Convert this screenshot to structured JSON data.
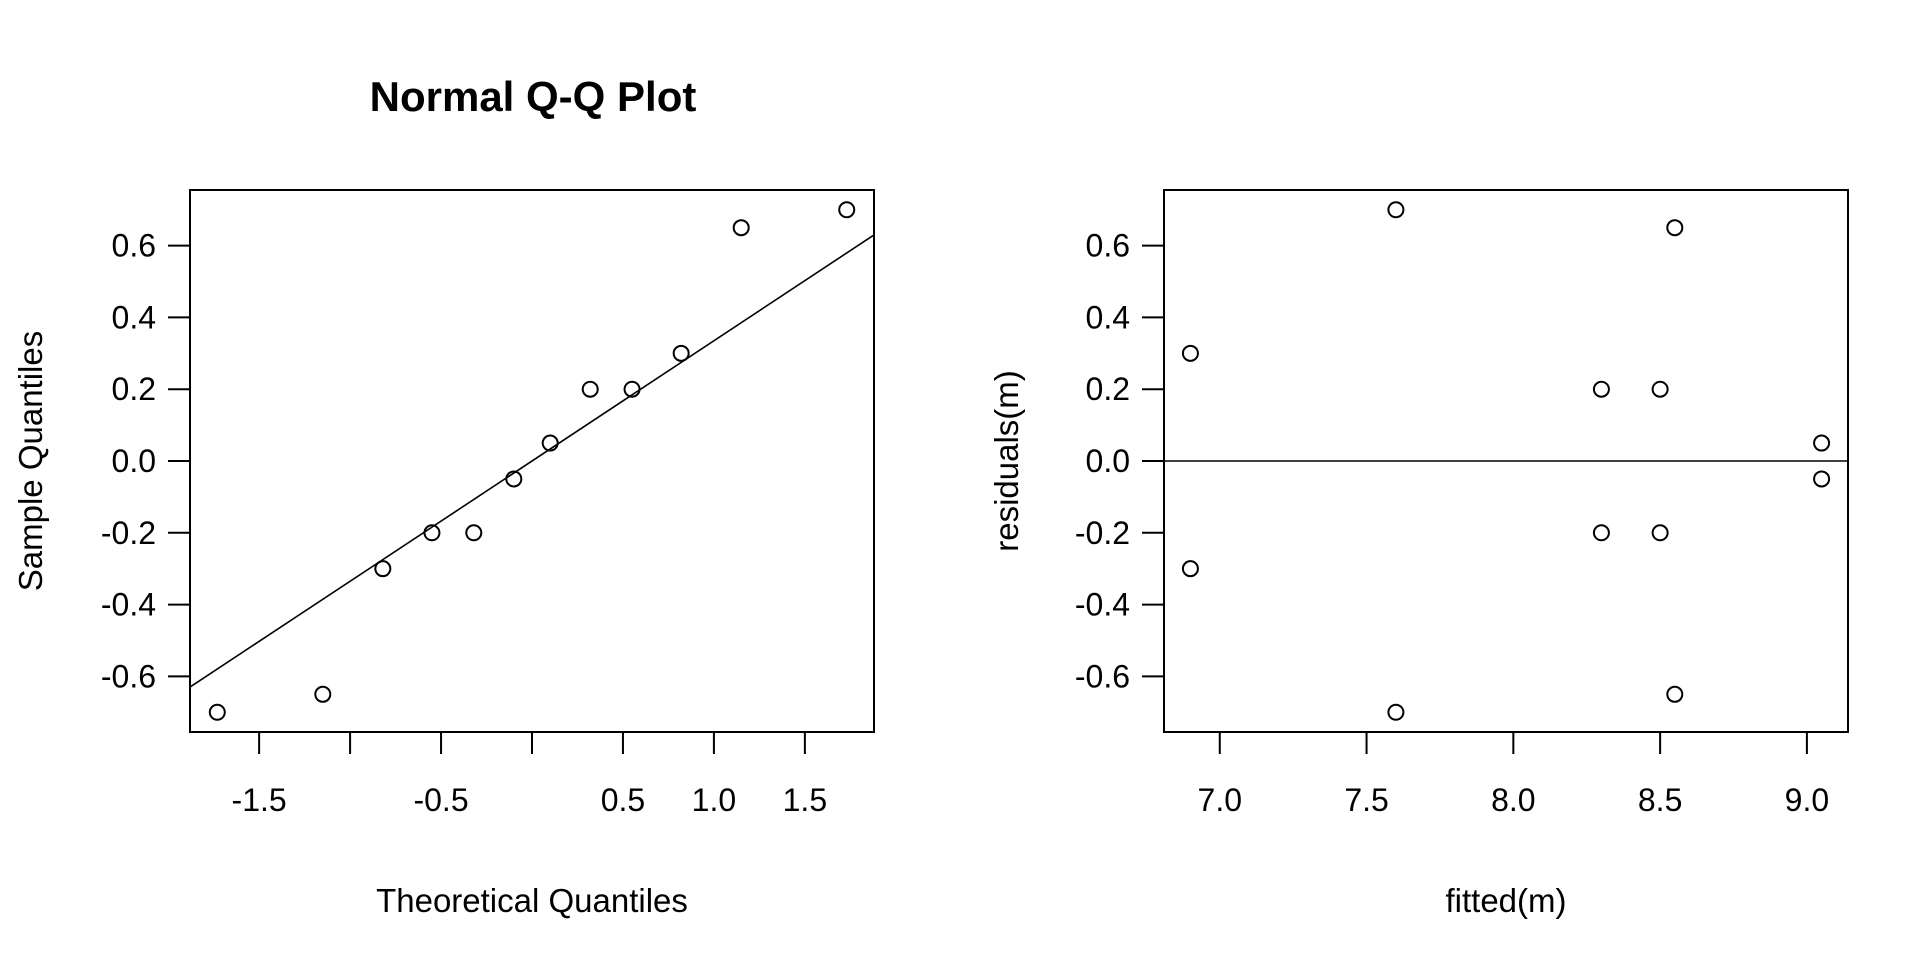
{
  "chart_data": [
    {
      "type": "scatter",
      "title": "Normal Q-Q Plot",
      "xlabel": "Theoretical Quantiles",
      "ylabel": "Sample Quantiles",
      "xlim": [
        -1.88,
        1.88
      ],
      "ylim": [
        -0.755,
        0.755
      ],
      "xticks": [
        -1.5,
        -1,
        -0.5,
        0,
        0.5,
        1,
        1.5
      ],
      "xtick_labels": [
        "-1.5",
        "",
        "-0.5",
        "",
        "0.5",
        "1.0",
        "1.5"
      ],
      "yticks": [
        -0.6,
        -0.4,
        -0.2,
        0.0,
        0.2,
        0.4,
        0.6
      ],
      "ytick_labels": [
        "-0.6",
        "-0.4",
        "-0.2",
        "0.0",
        "0.2",
        "0.4",
        "0.6"
      ],
      "points": [
        {
          "x": -1.73,
          "y": -0.7
        },
        {
          "x": -1.15,
          "y": -0.65
        },
        {
          "x": -0.82,
          "y": -0.3
        },
        {
          "x": -0.55,
          "y": -0.2
        },
        {
          "x": -0.32,
          "y": -0.2
        },
        {
          "x": -0.1,
          "y": -0.05
        },
        {
          "x": 0.1,
          "y": 0.05
        },
        {
          "x": 0.32,
          "y": 0.2
        },
        {
          "x": 0.55,
          "y": 0.2
        },
        {
          "x": 0.82,
          "y": 0.3
        },
        {
          "x": 1.15,
          "y": 0.65
        },
        {
          "x": 1.73,
          "y": 0.7
        }
      ],
      "reference_line": {
        "type": "qqline",
        "intercept": 0.0,
        "slope": 0.335
      }
    },
    {
      "type": "scatter",
      "title": "",
      "xlabel": "fitted(m)",
      "ylabel": "residuals(m)",
      "xlim": [
        6.81,
        9.14
      ],
      "ylim": [
        -0.755,
        0.755
      ],
      "xticks": [
        7.0,
        7.5,
        8.0,
        8.5,
        9.0
      ],
      "xtick_labels": [
        "7.0",
        "7.5",
        "8.0",
        "8.5",
        "9.0"
      ],
      "yticks": [
        -0.6,
        -0.4,
        -0.2,
        0.0,
        0.2,
        0.4,
        0.6
      ],
      "ytick_labels": [
        "-0.6",
        "-0.4",
        "-0.2",
        "0.0",
        "0.2",
        "0.4",
        "0.6"
      ],
      "points": [
        {
          "x": 6.9,
          "y": 0.3
        },
        {
          "x": 6.9,
          "y": -0.3
        },
        {
          "x": 7.6,
          "y": 0.7
        },
        {
          "x": 7.6,
          "y": -0.7
        },
        {
          "x": 8.3,
          "y": 0.2
        },
        {
          "x": 8.3,
          "y": -0.2
        },
        {
          "x": 8.5,
          "y": 0.2
        },
        {
          "x": 8.5,
          "y": -0.2
        },
        {
          "x": 8.55,
          "y": 0.65
        },
        {
          "x": 8.55,
          "y": -0.65
        },
        {
          "x": 9.05,
          "y": 0.05
        },
        {
          "x": 9.05,
          "y": -0.05
        }
      ],
      "reference_line": {
        "type": "hline",
        "y": 0.0
      }
    }
  ]
}
